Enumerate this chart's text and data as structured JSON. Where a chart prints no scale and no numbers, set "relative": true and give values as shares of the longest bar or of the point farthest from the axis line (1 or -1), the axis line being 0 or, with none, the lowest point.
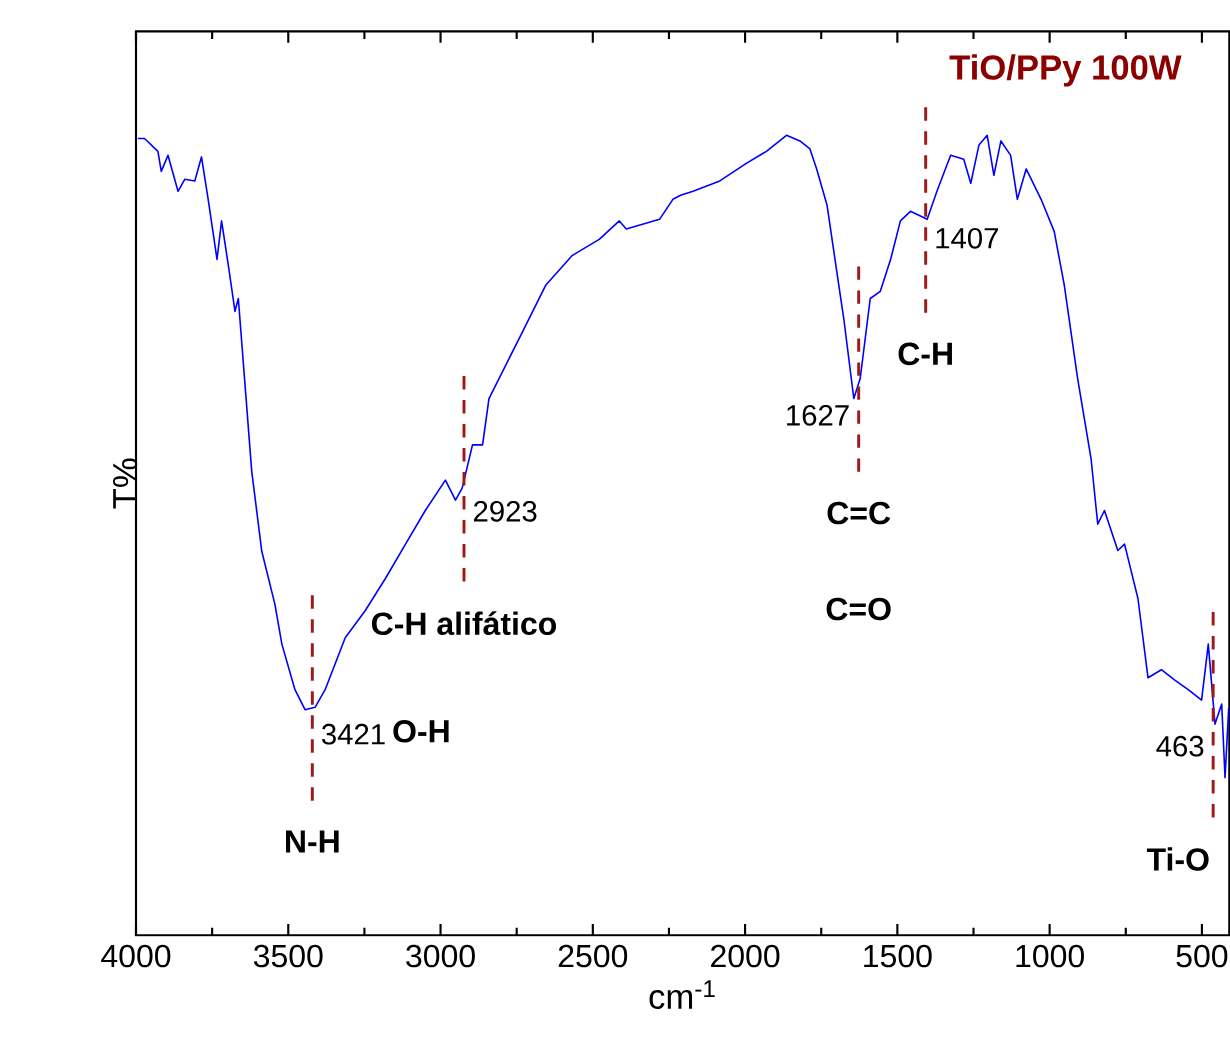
{
  "chart_data": {
    "type": "line",
    "relative": true,
    "title": "TiO/PPy 100W",
    "xlabel": "cm$^{-1}$",
    "ylabel": "T%",
    "xlim": [
      4000,
      410
    ],
    "xticks": [
      4000,
      3500,
      3000,
      2500,
      2000,
      1500,
      1000,
      500
    ],
    "series": [
      {
        "color": "#0000ff",
        "x": [
          3994,
          3972,
          3928,
          3917,
          3895,
          3862,
          3840,
          3807,
          3785,
          3763,
          3734,
          3719,
          3697,
          3675,
          3664,
          3642,
          3620,
          3587,
          3544,
          3521,
          3478,
          3445,
          3412,
          3379,
          3313,
          3247,
          3181,
          3115,
          3050,
          2984,
          2951,
          2929,
          2895,
          2862,
          2841,
          2742,
          2654,
          2567,
          2479,
          2413,
          2390,
          2281,
          2237,
          2212,
          2171,
          2083,
          1996,
          1930,
          1864,
          1820,
          1787,
          1765,
          1731,
          1699,
          1676,
          1643,
          1622,
          1589,
          1556,
          1522,
          1490,
          1457,
          1402,
          1370,
          1325,
          1282,
          1259,
          1232,
          1205,
          1183,
          1160,
          1128,
          1106,
          1077,
          1028,
          985,
          952,
          908,
          864,
          842,
          820,
          776,
          754,
          710,
          677,
          633,
          589,
          545,
          501,
          479,
          457,
          435,
          424,
          412
        ],
        "values": [
          0.996,
          0.996,
          0.98,
          0.955,
          0.975,
          0.93,
          0.945,
          0.943,
          0.973,
          0.92,
          0.845,
          0.893,
          0.838,
          0.78,
          0.796,
          0.688,
          0.58,
          0.48,
          0.414,
          0.364,
          0.307,
          0.282,
          0.285,
          0.307,
          0.372,
          0.406,
          0.446,
          0.489,
          0.531,
          0.569,
          0.544,
          0.559,
          0.613,
          0.613,
          0.671,
          0.746,
          0.813,
          0.85,
          0.87,
          0.893,
          0.883,
          0.895,
          0.92,
          0.925,
          0.93,
          0.943,
          0.965,
          0.98,
          1.0,
          0.993,
          0.983,
          0.958,
          0.913,
          0.83,
          0.771,
          0.671,
          0.696,
          0.796,
          0.805,
          0.845,
          0.893,
          0.905,
          0.895,
          0.93,
          0.975,
          0.97,
          0.94,
          0.988,
          1.0,
          0.95,
          0.993,
          0.975,
          0.92,
          0.958,
          0.92,
          0.88,
          0.813,
          0.696,
          0.596,
          0.514,
          0.531,
          0.481,
          0.489,
          0.421,
          0.322,
          0.332,
          0.319,
          0.307,
          0.294,
          0.364,
          0.264,
          0.289,
          0.197,
          0.284
        ]
      }
    ],
    "ref_lines": [
      {
        "axis": "x",
        "value": 3421,
        "label": "N-H",
        "color": "#a01818",
        "line_style": "dashed"
      },
      {
        "axis": "x",
        "value": 2923,
        "label": "C-H alifático",
        "color": "#a01818",
        "line_style": "dashed"
      },
      {
        "axis": "x",
        "value": 1627,
        "label": "C=C",
        "color": "#a01818",
        "line_style": "dashed"
      },
      {
        "axis": "x",
        "value": 1407,
        "label": "C-H",
        "color": "#a01818",
        "line_style": "dashed"
      },
      {
        "axis": "x",
        "value": 463,
        "label": "Ti-O",
        "color": "#a01818",
        "line_style": "dashed"
      }
    ],
    "annotations": [
      {
        "text": "3421",
        "x": 3421,
        "y": 0.285
      },
      {
        "text": "2923",
        "x": 2923,
        "y": 0.55
      },
      {
        "text": "1627",
        "x": 1627,
        "y": 0.67
      },
      {
        "text": "1407",
        "x": 1407,
        "y": 0.905
      },
      {
        "text": "463",
        "x": 463,
        "y": 0.27
      },
      "O-H",
      "C=O"
    ]
  }
}
